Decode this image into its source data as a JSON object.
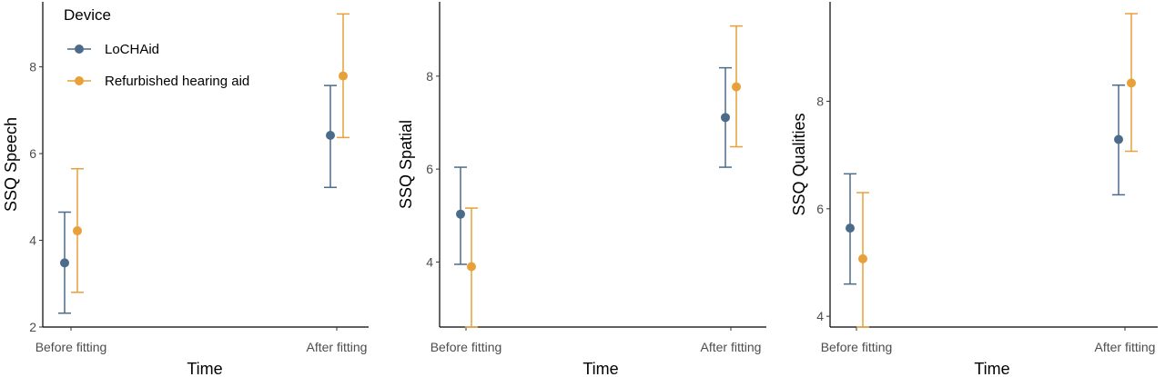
{
  "legend": {
    "title": "Device",
    "items": [
      {
        "label": "LoCHAid",
        "color": "#4a6b8a"
      },
      {
        "label": "Refurbished hearing aid",
        "color": "#e8a03a"
      }
    ]
  },
  "colors": {
    "lochaid": "#4a6b8a",
    "refurbished": "#e8a03a",
    "axis": "#000000",
    "tick_text": "#4d4d4d"
  },
  "chart_data": [
    {
      "type": "scatter",
      "subtype": "point-with-error-bars",
      "xlabel": "Time",
      "ylabel": "SSQ Speech",
      "categories": [
        "Before fitting",
        "After fitting"
      ],
      "ylim": [
        2,
        9.5
      ],
      "yticks": [
        2,
        4,
        6,
        8
      ],
      "series": [
        {
          "name": "LoCHAid",
          "values": [
            3.48,
            6.42
          ],
          "lower": [
            2.32,
            5.22
          ],
          "upper": [
            4.65,
            7.57
          ]
        },
        {
          "name": "Refurbished hearing aid",
          "values": [
            4.22,
            7.79
          ],
          "lower": [
            2.8,
            6.37
          ],
          "upper": [
            5.65,
            9.22
          ]
        }
      ]
    },
    {
      "type": "scatter",
      "subtype": "point-with-error-bars",
      "xlabel": "Time",
      "ylabel": "SSQ Spatial",
      "categories": [
        "Before fitting",
        "After fitting"
      ],
      "ylim": [
        2.6,
        9.6
      ],
      "yticks": [
        4,
        6,
        8
      ],
      "series": [
        {
          "name": "LoCHAid",
          "values": [
            5.03,
            7.11
          ],
          "lower": [
            3.95,
            6.04
          ],
          "upper": [
            6.04,
            8.18
          ]
        },
        {
          "name": "Refurbished hearing aid",
          "values": [
            3.9,
            7.77
          ],
          "lower": [
            2.6,
            6.48
          ],
          "upper": [
            5.16,
            9.08
          ]
        }
      ]
    },
    {
      "type": "scatter",
      "subtype": "point-with-error-bars",
      "xlabel": "Time",
      "ylabel": "SSQ Qualities",
      "categories": [
        "Before fitting",
        "After fitting"
      ],
      "ylim": [
        3.8,
        9.85
      ],
      "yticks": [
        4,
        6,
        8
      ],
      "series": [
        {
          "name": "LoCHAid",
          "values": [
            5.64,
            7.29
          ],
          "lower": [
            4.6,
            6.26
          ],
          "upper": [
            6.65,
            8.3
          ]
        },
        {
          "name": "Refurbished hearing aid",
          "values": [
            5.07,
            8.34
          ],
          "lower": [
            3.8,
            7.07
          ],
          "upper": [
            6.3,
            9.63
          ]
        }
      ]
    }
  ]
}
